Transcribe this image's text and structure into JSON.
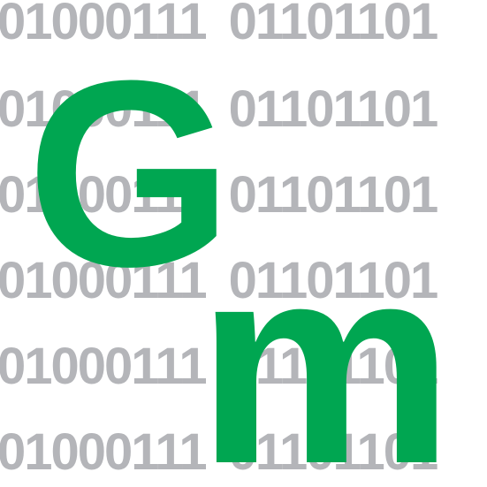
{
  "binary_rows": [
    {
      "a": "01000111",
      "b": "01101101"
    },
    {
      "a": "01000111",
      "b": "01101101"
    },
    {
      "a": "01000111",
      "b": "01101101"
    },
    {
      "a": "01000111",
      "b": "01101101"
    },
    {
      "a": "01000111",
      "b": "01101101"
    },
    {
      "a": "01000111",
      "b": "01101101"
    }
  ],
  "logo": {
    "letter_1": "G",
    "letter_2": "m"
  },
  "colors": {
    "binary_text": "#b4b5b9",
    "logo_green": "#00a651",
    "background": "#ffffff"
  }
}
